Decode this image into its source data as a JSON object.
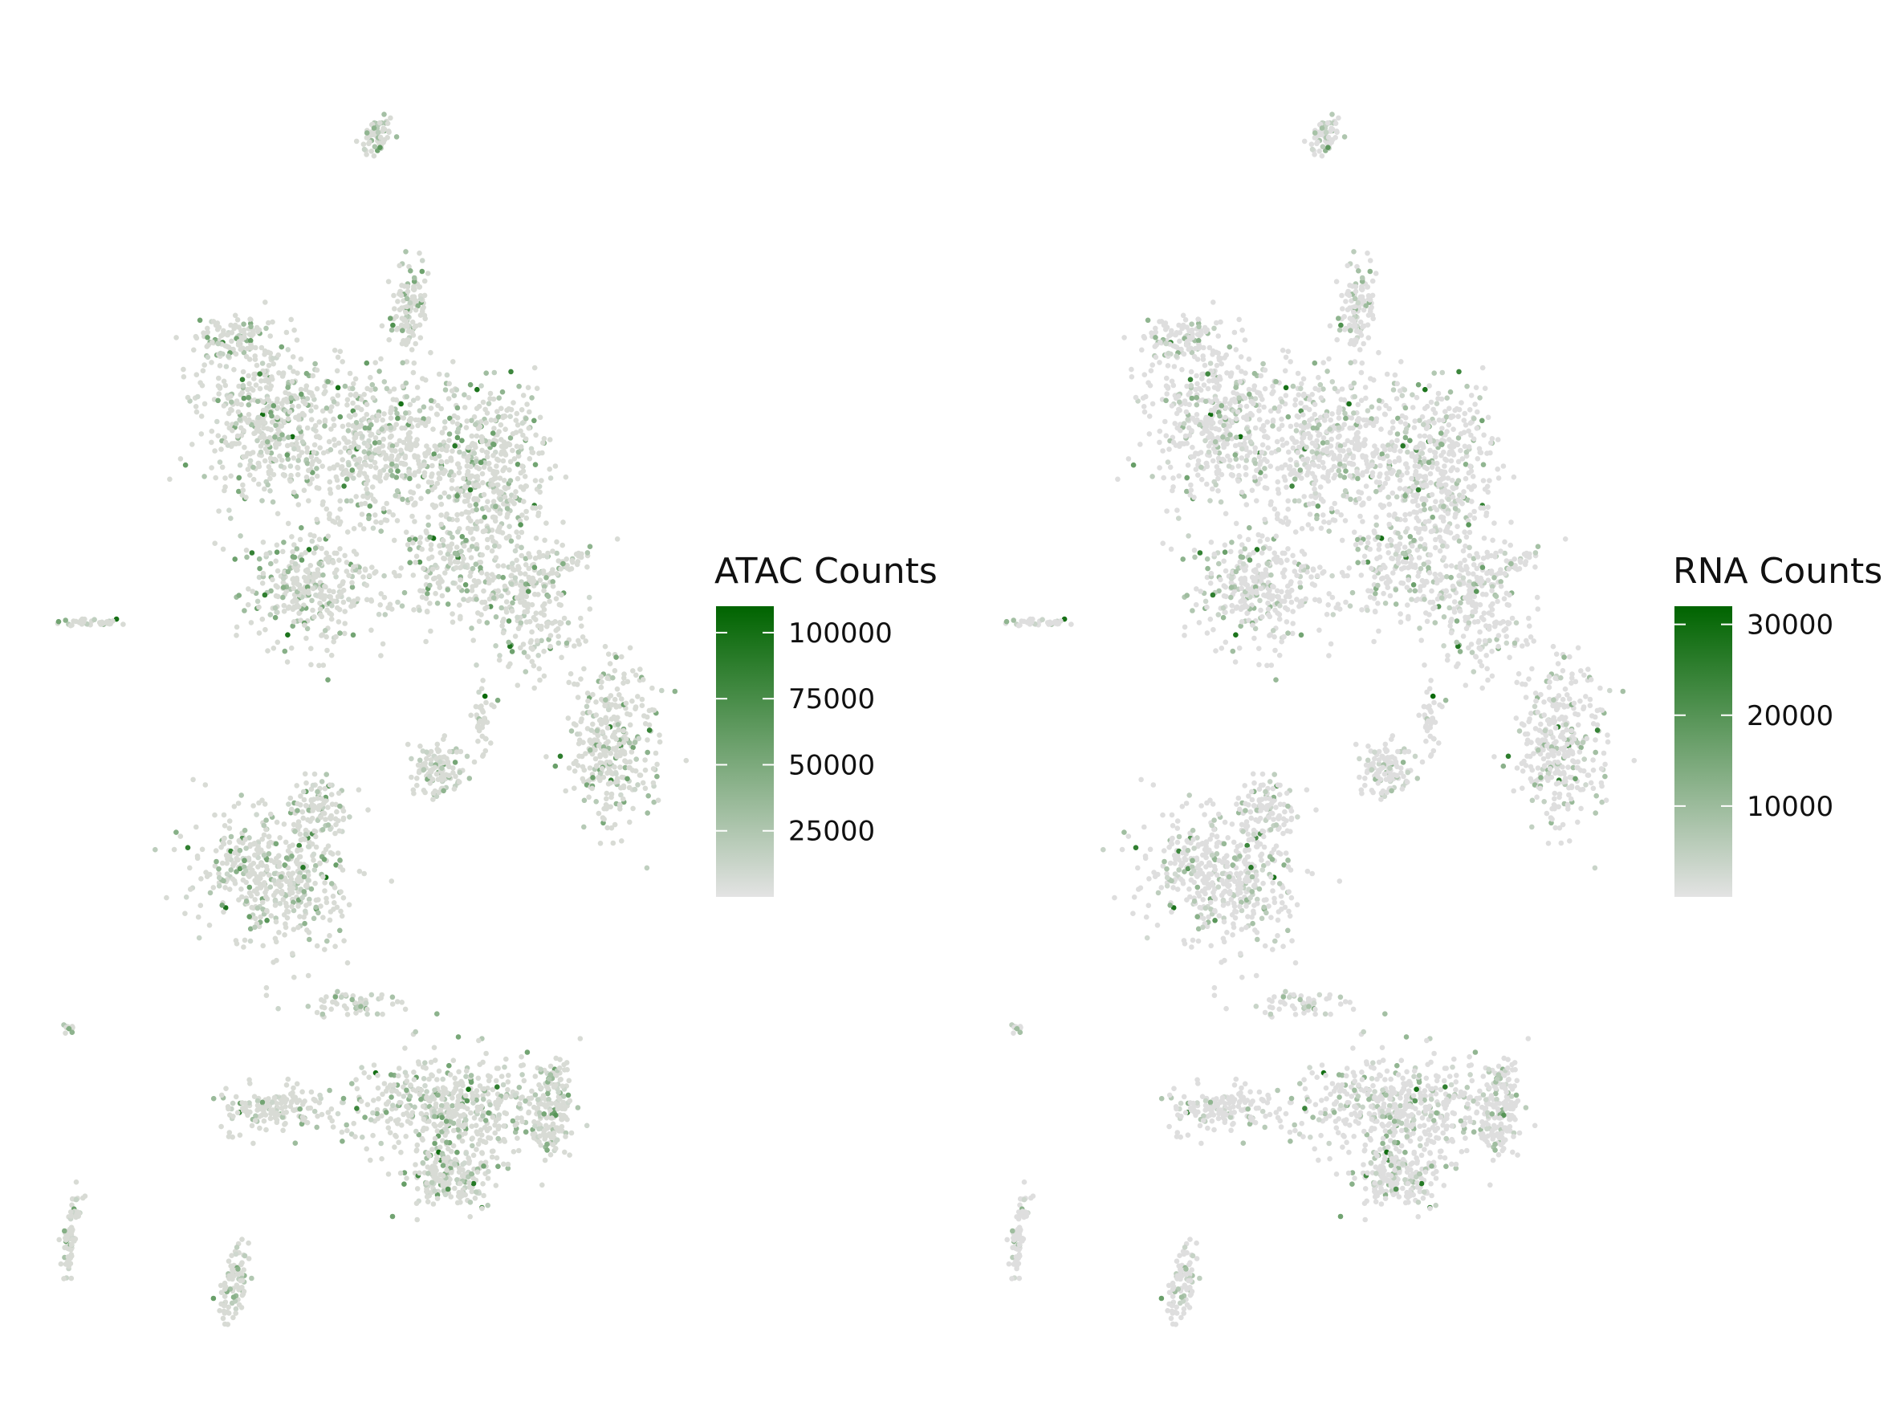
{
  "chart_data": [
    {
      "type": "scatter",
      "title": "",
      "xlabel": "",
      "ylabel": "",
      "axes_visible": false,
      "grid": false,
      "legend_placement": "right",
      "colorbar": {
        "title": "ATAC Counts",
        "range": [
          0,
          110000
        ],
        "ticks": [
          25000,
          50000,
          75000,
          100000
        ],
        "tick_labels": [
          "25000",
          "50000",
          "75000",
          "100000"
        ],
        "color_low": "#e3e3e3",
        "color_high": "#006400"
      },
      "point_color": "#d3d8cf"
    },
    {
      "type": "scatter",
      "title": "",
      "xlabel": "",
      "ylabel": "",
      "axes_visible": false,
      "grid": false,
      "legend_placement": "right",
      "colorbar": {
        "title": "RNA Counts",
        "range": [
          0,
          32000
        ],
        "ticks": [
          10000,
          20000,
          30000
        ],
        "tick_labels": [
          "10000",
          "20000",
          "30000"
        ],
        "color_low": "#e3e3e3",
        "color_high": "#006400"
      },
      "point_color": "#dcdcdc"
    }
  ]
}
